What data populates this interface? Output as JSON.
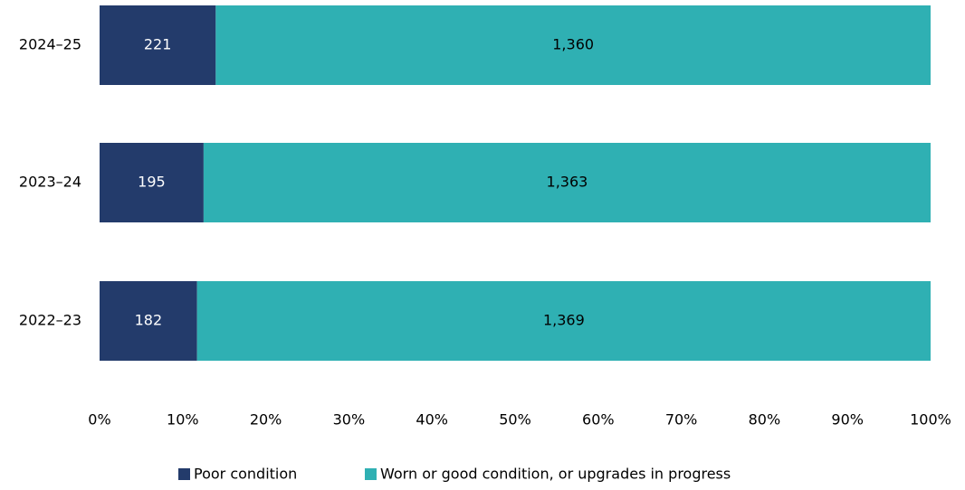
{
  "chart_data": {
    "type": "bar",
    "orientation": "horizontal",
    "stack": "percent",
    "categories": [
      "2024–25",
      "2023–24",
      "2022–23"
    ],
    "series": [
      {
        "name": "Poor condition",
        "color": "#233b6b",
        "label_color": "#ffffff",
        "values": [
          221,
          195,
          182
        ],
        "value_labels": [
          "221",
          "195",
          "182"
        ]
      },
      {
        "name": "Worn or good condition, or upgrades in progress",
        "color": "#2fb0b3",
        "label_color": "#000000",
        "values": [
          1360,
          1363,
          1369
        ],
        "value_labels": [
          "1,360",
          "1,363",
          "1,369"
        ]
      }
    ],
    "xlim": [
      0,
      100
    ],
    "xticks": [
      {
        "value": 0,
        "label": "0%"
      },
      {
        "value": 10,
        "label": "10%"
      },
      {
        "value": 20,
        "label": "20%"
      },
      {
        "value": 30,
        "label": "30%"
      },
      {
        "value": 40,
        "label": "40%"
      },
      {
        "value": 50,
        "label": "50%"
      },
      {
        "value": 60,
        "label": "60%"
      },
      {
        "value": 70,
        "label": "70%"
      },
      {
        "value": 80,
        "label": "80%"
      },
      {
        "value": 90,
        "label": "90%"
      },
      {
        "value": 100,
        "label": "100%"
      }
    ],
    "legend": "bottom"
  }
}
